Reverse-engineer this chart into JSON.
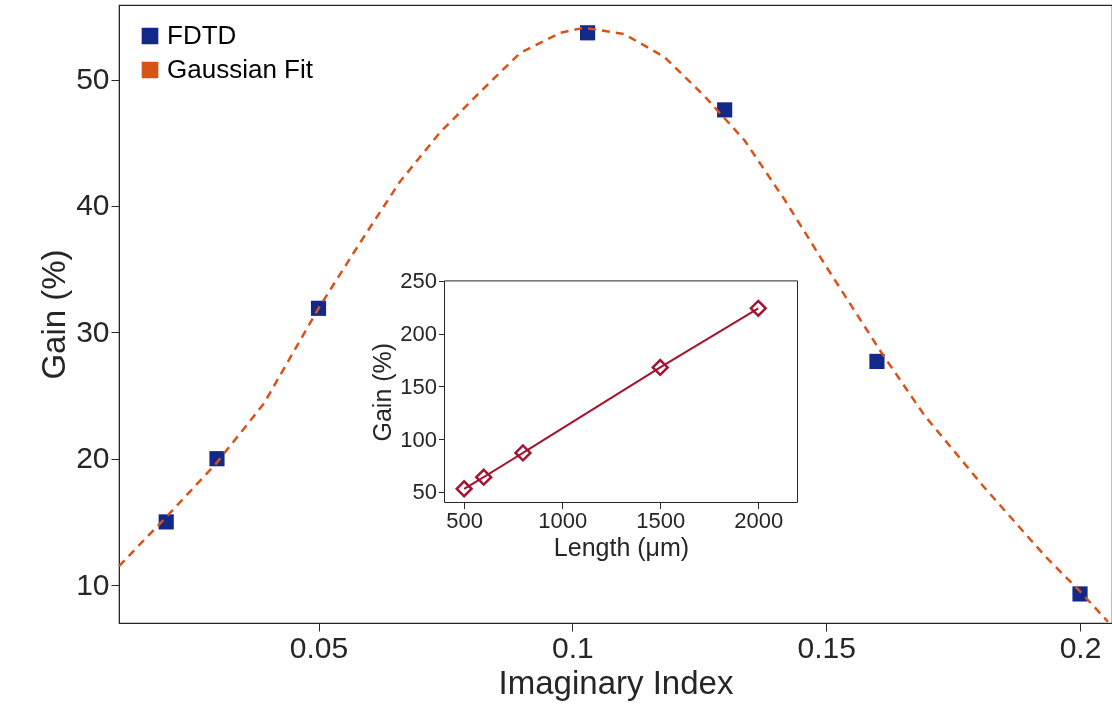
{
  "chart_data": [
    {
      "type": "scatter",
      "xlabel": "Imaginary Index",
      "ylabel": "Gain (%)",
      "xlim": [
        0.0107,
        0.2063
      ],
      "ylim": [
        7,
        55.9
      ],
      "xticks": [
        0.05,
        0.1,
        0.15,
        0.2
      ],
      "yticks": [
        10,
        20,
        30,
        40,
        50
      ],
      "legend": "top left",
      "grid": false,
      "series": [
        {
          "name": "FDTD",
          "type": "scatter",
          "marker": "square",
          "color": "#12298a",
          "x": [
            0.02,
            0.03,
            0.05,
            0.103,
            0.13,
            0.16,
            0.2
          ],
          "values": [
            15.0,
            20.0,
            31.9,
            53.7,
            47.6,
            27.7,
            9.3
          ]
        },
        {
          "name": "Gaussian Fit",
          "type": "line",
          "marker": "none",
          "line_style": "dashed",
          "color": "#d95319",
          "x": [
            0.0107,
            0.0198,
            0.0298,
            0.0393,
            0.05,
            0.0582,
            0.066,
            0.0739,
            0.0818,
            0.0897,
            0.0976,
            0.1023,
            0.1102,
            0.1181,
            0.126,
            0.1339,
            0.1418,
            0.1497,
            0.1607,
            0.1694,
            0.1812,
            0.1931,
            0.2,
            0.2055
          ],
          "values": [
            11.5,
            15.3,
            19.6,
            24.4,
            31.9,
            37.1,
            41.9,
            45.8,
            49.0,
            52.1,
            53.7,
            54.1,
            53.6,
            51.8,
            48.7,
            45.2,
            40.5,
            35.4,
            28.5,
            23.4,
            17.7,
            12.3,
            9.5,
            7.1
          ]
        }
      ]
    },
    {
      "type": "line",
      "xlabel": "Length (μm)",
      "ylabel": "Gain (%)",
      "xlim": [
        400,
        2200
      ],
      "ylim": [
        40,
        250
      ],
      "xticks": [
        500,
        1000,
        1500,
        2000
      ],
      "yticks": [
        50,
        100,
        150,
        200,
        250
      ],
      "grid": false,
      "marker": "diamond",
      "line_style": "solid",
      "color": "#a2142f",
      "x": [
        500,
        600,
        800,
        1500,
        2000
      ],
      "values": [
        53,
        64,
        87,
        168,
        224
      ]
    }
  ]
}
